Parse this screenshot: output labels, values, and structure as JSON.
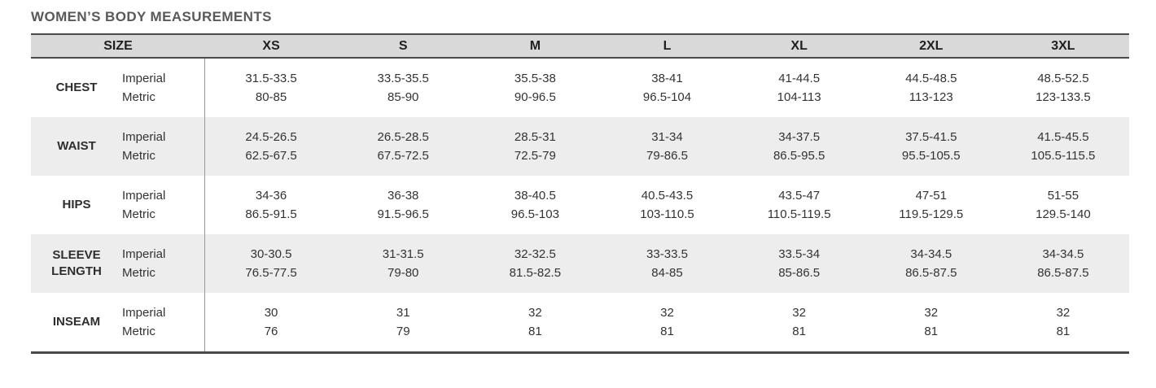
{
  "title": "WOMEN’S BODY MEASUREMENTS",
  "chart_data": {
    "type": "table",
    "size_header": "SIZE",
    "columns": [
      "XS",
      "S",
      "M",
      "L",
      "XL",
      "2XL",
      "3XL"
    ],
    "unit_labels": [
      "Imperial",
      "Metric"
    ],
    "rows": [
      {
        "name": "CHEST",
        "imperial": [
          "31.5-33.5",
          "33.5-35.5",
          "35.5-38",
          "38-41",
          "41-44.5",
          "44.5-48.5",
          "48.5-52.5"
        ],
        "metric": [
          "80-85",
          "85-90",
          "90-96.5",
          "96.5-104",
          "104-113",
          "113-123",
          "123-133.5"
        ]
      },
      {
        "name": "WAIST",
        "imperial": [
          "24.5-26.5",
          "26.5-28.5",
          "28.5-31",
          "31-34",
          "34-37.5",
          "37.5-41.5",
          "41.5-45.5"
        ],
        "metric": [
          "62.5-67.5",
          "67.5-72.5",
          "72.5-79",
          "79-86.5",
          "86.5-95.5",
          "95.5-105.5",
          "105.5-115.5"
        ]
      },
      {
        "name": "HIPS",
        "imperial": [
          "34-36",
          "36-38",
          "38-40.5",
          "40.5-43.5",
          "43.5-47",
          "47-51",
          "51-55"
        ],
        "metric": [
          "86.5-91.5",
          "91.5-96.5",
          "96.5-103",
          "103-110.5",
          "110.5-119.5",
          "119.5-129.5",
          "129.5-140"
        ]
      },
      {
        "name": "SLEEVE LENGTH",
        "imperial": [
          "30-30.5",
          "31-31.5",
          "32-32.5",
          "33-33.5",
          "33.5-34",
          "34-34.5",
          "34-34.5"
        ],
        "metric": [
          "76.5-77.5",
          "79-80",
          "81.5-82.5",
          "84-85",
          "85-86.5",
          "86.5-87.5",
          "86.5-87.5"
        ]
      },
      {
        "name": "INSEAM",
        "imperial": [
          "30",
          "31",
          "32",
          "32",
          "32",
          "32",
          "32"
        ],
        "metric": [
          "76",
          "79",
          "81",
          "81",
          "81",
          "81",
          "81"
        ]
      }
    ]
  },
  "colors": {
    "header_bg": "#d9d9d9",
    "alt_row_bg": "#ededed",
    "border_dark": "#4a4a4a",
    "divider": "#999999",
    "title_text": "#595959",
    "body_text": "#333333"
  }
}
